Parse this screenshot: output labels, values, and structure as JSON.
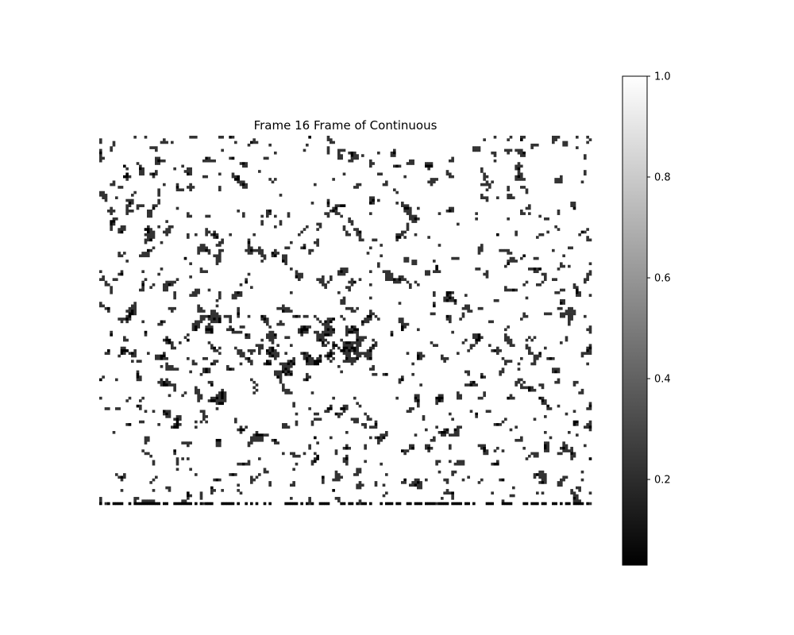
{
  "chart_data": {
    "type": "heatmap",
    "title": "Frame 16 Frame of Continuous",
    "xlabel": "",
    "ylabel": "",
    "axes_visible": false,
    "grid": false,
    "colormap": "gray",
    "value_levels": [
      0.03,
      0.2,
      1.0
    ],
    "description_levels": {
      "black": 0.03,
      "dark_gray": 0.2,
      "white": 1.0
    },
    "colorbar": {
      "orientation": "vertical",
      "placement": "right",
      "range": [
        0.03,
        1.0
      ],
      "ticks": [
        0.2,
        0.4,
        0.6,
        0.8,
        1.0
      ],
      "tick_labels": [
        "0.2",
        "0.4",
        "0.6",
        "0.8",
        "1.0"
      ]
    },
    "colors": {
      "low": "#000000",
      "mid": "#333333",
      "high": "#ffffff"
    }
  }
}
